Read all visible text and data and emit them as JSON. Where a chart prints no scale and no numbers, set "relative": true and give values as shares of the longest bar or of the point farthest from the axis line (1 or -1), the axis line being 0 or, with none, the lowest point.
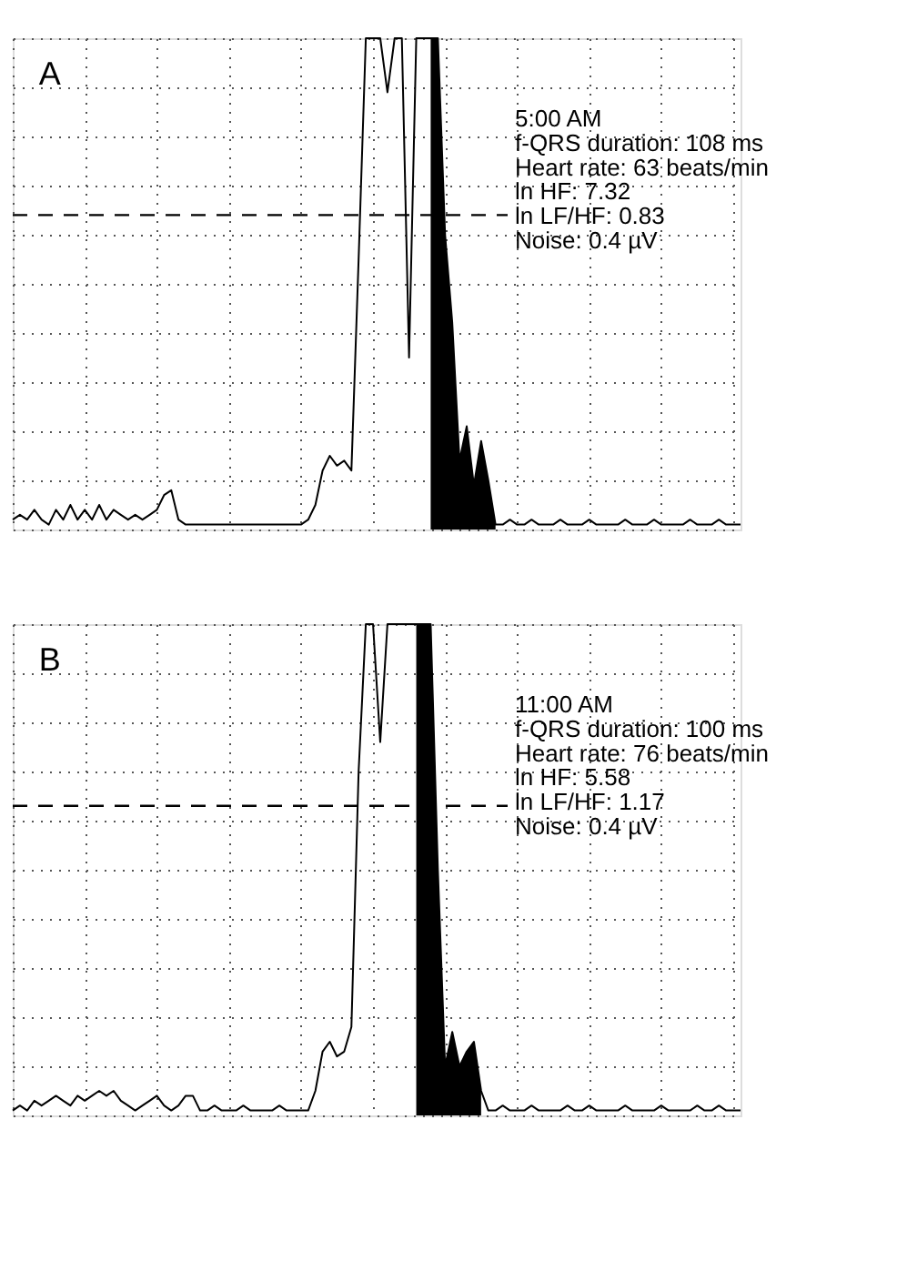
{
  "chart_data": [
    {
      "type": "line",
      "title": "A",
      "relative": true,
      "grid": true,
      "tick_labels": false,
      "line_style": "solid",
      "marker": "none",
      "categories": [
        null,
        null,
        null,
        null,
        null,
        null,
        null,
        null,
        null,
        null,
        null,
        null,
        null,
        null,
        null,
        null,
        null,
        null,
        null,
        null,
        null,
        null,
        null,
        null,
        null,
        null,
        null,
        null,
        null,
        null,
        null,
        null,
        null,
        null,
        null,
        null,
        null,
        null,
        null,
        null,
        null,
        null,
        null,
        null,
        null,
        null,
        null,
        null,
        null,
        null,
        null,
        null,
        null,
        null,
        null,
        null,
        null,
        null,
        null,
        null,
        null,
        null,
        null,
        null,
        null,
        null,
        null,
        null,
        null,
        null,
        null,
        null,
        null,
        null,
        null,
        null,
        null,
        null,
        null,
        null,
        null,
        null,
        null,
        null,
        null,
        null,
        null,
        null,
        null,
        null,
        null,
        null,
        null,
        null,
        null,
        null,
        null,
        null,
        null,
        null,
        null,
        null
      ],
      "series": [
        {
          "color": "#000000",
          "values": [
            0.02,
            0.03,
            0.02,
            0.04,
            0.02,
            0.01,
            0.04,
            0.02,
            0.05,
            0.02,
            0.04,
            0.02,
            0.05,
            0.02,
            0.04,
            0.03,
            0.02,
            0.03,
            0.02,
            0.03,
            0.04,
            0.07,
            0.08,
            0.02,
            0.01,
            0.01,
            0.01,
            0.01,
            0.01,
            0.01,
            0.01,
            0.01,
            0.01,
            0.01,
            0.01,
            0.01,
            0.01,
            0.01,
            0.01,
            0.01,
            0.01,
            0.02,
            0.05,
            0.12,
            0.15,
            0.13,
            0.14,
            0.12,
            0.55,
            1,
            1,
            1,
            0.89,
            1,
            1,
            0.35,
            1,
            1,
            1,
            1,
            0.6,
            0.42,
            0.14,
            0.21,
            0.09,
            0.18,
            0.1,
            0.01,
            0.01,
            0.02,
            0.01,
            0.01,
            0.02,
            0.01,
            0.01,
            0.01,
            0.02,
            0.01,
            0.01,
            0.01,
            0.02,
            0.01,
            0.01,
            0.01,
            0.01,
            0.02,
            0.01,
            0.01,
            0.01,
            0.02,
            0.01,
            0.01,
            0.01,
            0.01,
            0.02,
            0.01,
            0.01,
            0.01,
            0.02,
            0.01,
            0.01,
            0.01
          ]
        },
        {
          "type": "area",
          "color": "#000000",
          "values": [
            null,
            null,
            null,
            null,
            null,
            null,
            null,
            null,
            null,
            null,
            null,
            null,
            null,
            null,
            null,
            null,
            null,
            null,
            null,
            null,
            null,
            null,
            null,
            null,
            null,
            null,
            null,
            null,
            null,
            null,
            null,
            null,
            null,
            null,
            null,
            null,
            null,
            null,
            null,
            null,
            null,
            null,
            null,
            null,
            null,
            null,
            null,
            null,
            null,
            null,
            null,
            null,
            null,
            null,
            null,
            null,
            null,
            null,
            1,
            1,
            0.6,
            0.42,
            0.14,
            0.21,
            0.09,
            0.18,
            0.1,
            0.01,
            null,
            null,
            null,
            null,
            null,
            null,
            null,
            null,
            null,
            null,
            null,
            null,
            null,
            null,
            null,
            null,
            null,
            null,
            null,
            null,
            null,
            null,
            null,
            null,
            null,
            null,
            null,
            null,
            null,
            null,
            null,
            null,
            null,
            null
          ]
        }
      ],
      "ref_lines": [
        {
          "axis": "y",
          "value": 0.64,
          "color": "#000000",
          "line_style": "dashed"
        }
      ],
      "annotations": [
        "5:00 AM",
        "f-QRS duration: 108 ms",
        "Heart rate: 63 beats/min",
        "ln HF: 7.32",
        "ln LF/HF: 0.83",
        "Noise: 0.4 µV"
      ]
    },
    {
      "type": "line",
      "title": "B",
      "relative": true,
      "grid": true,
      "tick_labels": false,
      "line_style": "solid",
      "marker": "none",
      "categories": [
        null,
        null,
        null,
        null,
        null,
        null,
        null,
        null,
        null,
        null,
        null,
        null,
        null,
        null,
        null,
        null,
        null,
        null,
        null,
        null,
        null,
        null,
        null,
        null,
        null,
        null,
        null,
        null,
        null,
        null,
        null,
        null,
        null,
        null,
        null,
        null,
        null,
        null,
        null,
        null,
        null,
        null,
        null,
        null,
        null,
        null,
        null,
        null,
        null,
        null,
        null,
        null,
        null,
        null,
        null,
        null,
        null,
        null,
        null,
        null,
        null,
        null,
        null,
        null,
        null,
        null,
        null,
        null,
        null,
        null,
        null,
        null,
        null,
        null,
        null,
        null,
        null,
        null,
        null,
        null,
        null,
        null,
        null,
        null,
        null,
        null,
        null,
        null,
        null,
        null,
        null,
        null,
        null,
        null,
        null,
        null,
        null,
        null,
        null,
        null,
        null,
        null
      ],
      "series": [
        {
          "color": "#000000",
          "values": [
            0.01,
            0.02,
            0.01,
            0.03,
            0.02,
            0.03,
            0.04,
            0.03,
            0.02,
            0.04,
            0.03,
            0.04,
            0.05,
            0.04,
            0.05,
            0.03,
            0.02,
            0.01,
            0.02,
            0.03,
            0.04,
            0.02,
            0.01,
            0.02,
            0.04,
            0.04,
            0.01,
            0.01,
            0.02,
            0.01,
            0.01,
            0.01,
            0.02,
            0.01,
            0.01,
            0.01,
            0.01,
            0.02,
            0.01,
            0.01,
            0.01,
            0.01,
            0.05,
            0.13,
            0.15,
            0.12,
            0.13,
            0.18,
            0.7,
            1,
            1,
            0.76,
            1,
            1,
            1,
            1,
            1,
            1,
            1,
            0.5,
            0.1,
            0.17,
            0.1,
            0.13,
            0.15,
            0.05,
            0.01,
            0.01,
            0.02,
            0.01,
            0.01,
            0.01,
            0.02,
            0.01,
            0.01,
            0.01,
            0.01,
            0.02,
            0.01,
            0.01,
            0.02,
            0.01,
            0.01,
            0.01,
            0.01,
            0.02,
            0.01,
            0.01,
            0.01,
            0.01,
            0.02,
            0.01,
            0.01,
            0.01,
            0.01,
            0.02,
            0.01,
            0.01,
            0.02,
            0.01,
            0.01,
            0.01
          ]
        },
        {
          "type": "area",
          "color": "#000000",
          "values": [
            null,
            null,
            null,
            null,
            null,
            null,
            null,
            null,
            null,
            null,
            null,
            null,
            null,
            null,
            null,
            null,
            null,
            null,
            null,
            null,
            null,
            null,
            null,
            null,
            null,
            null,
            null,
            null,
            null,
            null,
            null,
            null,
            null,
            null,
            null,
            null,
            null,
            null,
            null,
            null,
            null,
            null,
            null,
            null,
            null,
            null,
            null,
            null,
            null,
            null,
            null,
            null,
            null,
            null,
            null,
            null,
            1,
            1,
            1,
            0.5,
            0.1,
            0.17,
            0.1,
            0.13,
            0.15,
            0.05,
            null,
            null,
            null,
            null,
            null,
            null,
            null,
            null,
            null,
            null,
            null,
            null,
            null,
            null,
            null,
            null,
            null,
            null,
            null,
            null,
            null,
            null,
            null,
            null,
            null,
            null,
            null,
            null,
            null,
            null,
            null,
            null,
            null,
            null,
            null,
            null
          ]
        }
      ],
      "ref_lines": [
        {
          "axis": "y",
          "value": 0.63,
          "color": "#000000",
          "line_style": "dashed"
        }
      ],
      "annotations": [
        "11:00 AM",
        "f-QRS duration: 100 ms",
        "Heart rate: 76 beats/min",
        "ln HF: 5.58",
        "ln LF/HF: 1.17",
        "Noise: 0.4 µV"
      ]
    }
  ]
}
